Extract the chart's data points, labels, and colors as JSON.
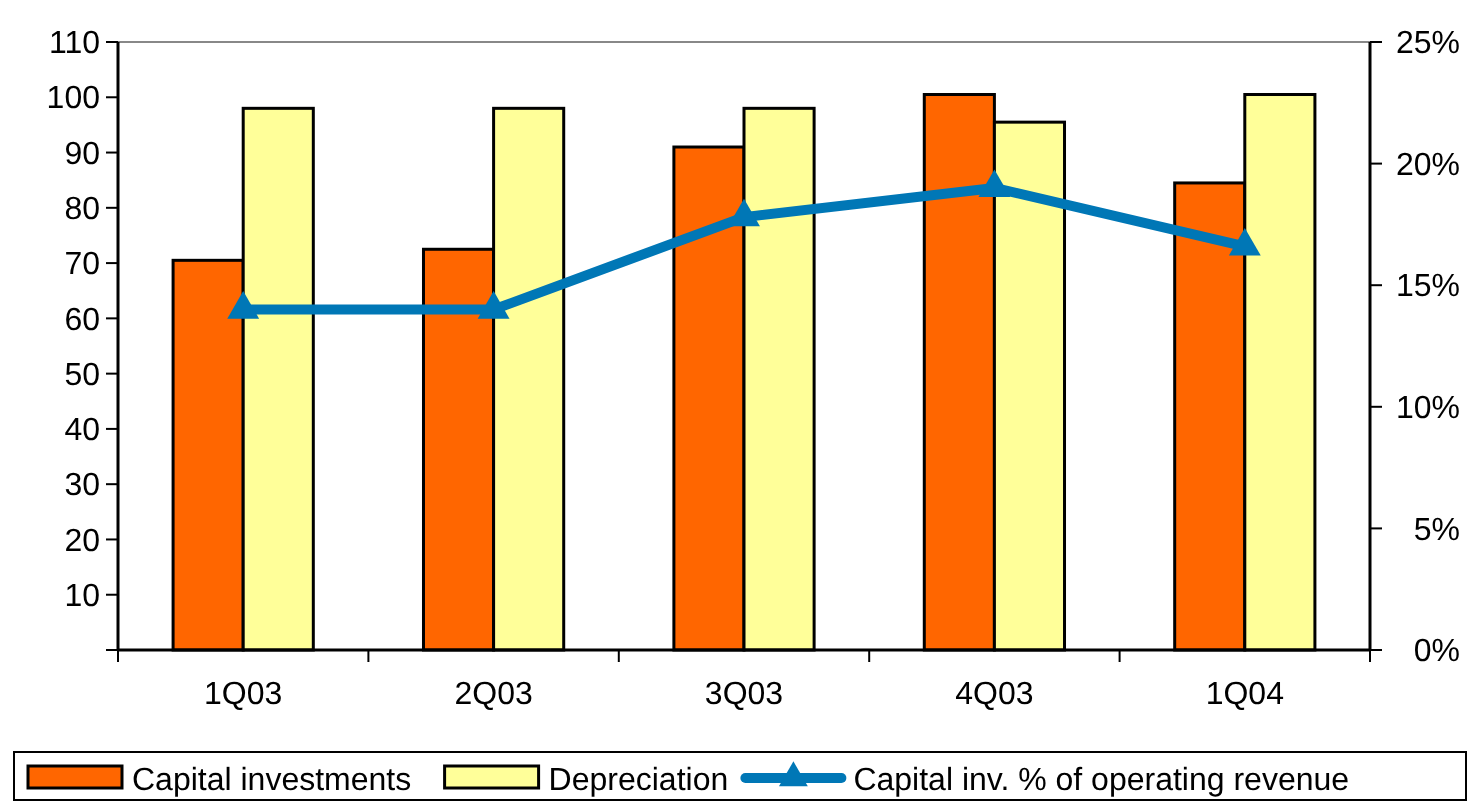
{
  "chart_data": {
    "type": "bar",
    "categories": [
      "1Q03",
      "2Q03",
      "3Q03",
      "4Q03",
      "1Q04"
    ],
    "series": [
      {
        "name": "Capital investments",
        "color": "#ff6600",
        "values": [
          70.5,
          72.5,
          91,
          100.5,
          84.5
        ]
      },
      {
        "name": "Depreciation",
        "color": "#ffff99",
        "values": [
          98,
          98,
          98,
          95.5,
          100.5
        ]
      },
      {
        "name": "Capital inv. % of operating revenue",
        "type": "line",
        "axis": "y2",
        "color": "#0077b6",
        "marker": "triangle",
        "values": [
          14,
          14,
          17.8,
          19,
          16.6
        ]
      }
    ],
    "ylim": [
      0,
      110
    ],
    "yticks": [
      {
        "value": 0,
        "label": null
      },
      10,
      20,
      30,
      40,
      50,
      60,
      70,
      80,
      90,
      100,
      110
    ],
    "y2lim": [
      0,
      25
    ],
    "y2ticks": [
      {
        "value": 0,
        "label": "0%"
      },
      {
        "value": 5,
        "label": "5%"
      },
      {
        "value": 10,
        "label": "10%"
      },
      {
        "value": 15,
        "label": "15%"
      },
      {
        "value": 20,
        "label": "20%"
      },
      {
        "value": 25,
        "label": "25%"
      }
    ],
    "grid": false,
    "legend": "bottom"
  }
}
